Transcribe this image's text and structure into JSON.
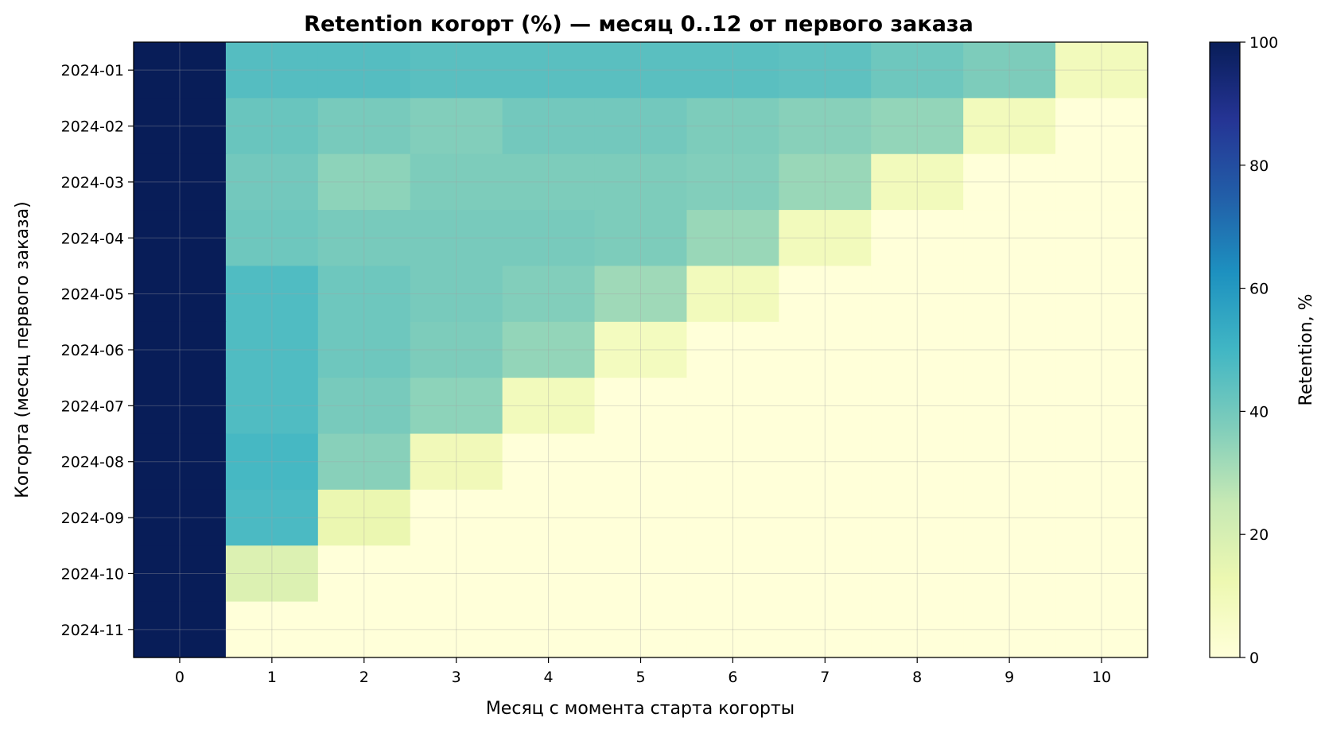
{
  "chart_data": {
    "type": "heatmap",
    "title": "Retention когорт (%) — месяц 0..12 от первого заказа",
    "xlabel": "Месяц с момента старта когорты",
    "ylabel": "Когорта (месяц первого заказа)",
    "colorbar_label": "Retention, %",
    "colormap": "YlGnBu",
    "color_range": [
      0,
      100
    ],
    "colorbar_ticks": [
      "0",
      "20",
      "40",
      "60",
      "80",
      "100"
    ],
    "x_categories": [
      "0",
      "1",
      "2",
      "3",
      "4",
      "5",
      "6",
      "7",
      "8",
      "9",
      "10"
    ],
    "y_categories": [
      "2024-01",
      "2024-02",
      "2024-03",
      "2024-04",
      "2024-05",
      "2024-06",
      "2024-07",
      "2024-08",
      "2024-09",
      "2024-10",
      "2024-11"
    ],
    "grid": true,
    "values": [
      [
        100,
        46,
        46,
        45,
        45,
        45,
        45,
        44,
        41,
        38,
        9
      ],
      [
        100,
        42,
        39,
        37,
        40,
        40,
        38,
        36,
        34,
        9,
        0
      ],
      [
        100,
        40,
        35,
        38,
        38,
        38,
        37,
        33,
        9,
        0,
        0
      ],
      [
        100,
        41,
        39,
        39,
        39,
        38,
        33,
        9,
        0,
        0,
        0
      ],
      [
        100,
        47,
        41,
        39,
        37,
        32,
        9,
        0,
        0,
        0,
        0
      ],
      [
        100,
        47,
        41,
        38,
        34,
        8,
        0,
        0,
        0,
        0,
        0
      ],
      [
        100,
        47,
        39,
        35,
        9,
        0,
        0,
        0,
        0,
        0,
        0
      ],
      [
        100,
        49,
        36,
        10,
        0,
        0,
        0,
        0,
        0,
        0,
        0
      ],
      [
        100,
        48,
        13,
        0,
        0,
        0,
        0,
        0,
        0,
        0,
        0
      ],
      [
        100,
        18,
        0,
        0,
        0,
        0,
        0,
        0,
        0,
        0,
        0
      ],
      [
        100,
        0,
        0,
        0,
        0,
        0,
        0,
        0,
        0,
        0,
        0
      ]
    ]
  }
}
